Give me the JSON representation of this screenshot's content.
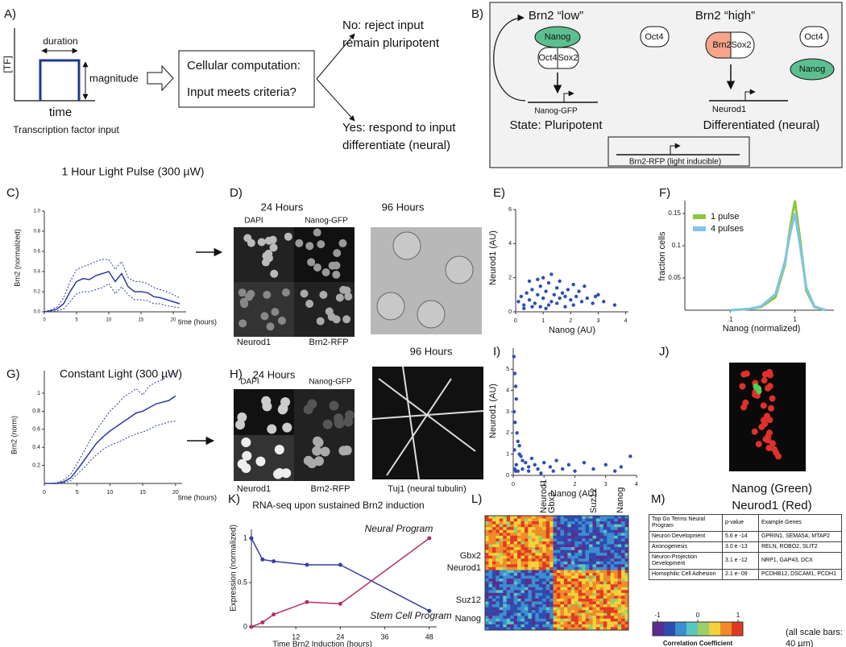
{
  "panel_labels": [
    "A)",
    "B)",
    "C)",
    "D)",
    "E)",
    "F)",
    "G)",
    "H)",
    "I)",
    "J)",
    "K)",
    "L)",
    "M)"
  ],
  "panel_a": {
    "y_label": "[TF]",
    "duration": "duration",
    "magnitude": "magnitude",
    "x_label": "time",
    "caption": "Transcription factor input",
    "box_line1": "Cellular computation:",
    "box_line2": "Input meets criteria?",
    "no_line1": "No: reject input",
    "no_line2": "remain pluripotent",
    "yes_line1": "Yes: respond to input",
    "yes_line2": "differentiate (neural)"
  },
  "panel_b": {
    "low": "Brn2 “low”",
    "high": "Brn2 “high”",
    "nanog": "Nanog",
    "oct4": "Oct4",
    "sox2": "Sox2",
    "gene_left": "Nanog-GFP",
    "state_left": "State: Pluripotent",
    "oct4_free": "Oct4",
    "brn2": "Brn2",
    "sox2_right": "Sox2",
    "oct4_right": "Oct4",
    "nanog_right": "Nanog",
    "gene_right": "Neurod1",
    "state_right": "Differentiated (neural)",
    "reporter": "Brn2-RFP (light inducible)"
  },
  "panel_d": {
    "t24": "24 Hours",
    "t96": "96 Hours",
    "dapi": "DAPI",
    "nanog_gfp": "Nanog-GFP",
    "neurod1": "Neurod1",
    "brn2_rfp": "Brn2-RFP"
  },
  "panel_h": {
    "t24": "24 Hours",
    "t96": "96 Hours",
    "dapi": "DAPI",
    "nanog_gfp": "Nanog-GFP",
    "neurod1": "Neurod1",
    "brn2_rfp": "Brn2-RFP",
    "tuj1": "Tuj1 (neural tubulin)"
  },
  "panel_j": {
    "line1": "Nanog (Green)",
    "line2": "Neurod1 (Red)"
  },
  "panel_l": {
    "top_labels": [
      "Neurod1",
      "Gbx2",
      "Suz12",
      "Nanog"
    ],
    "side_labels": [
      "Gbx2",
      "Neurod1",
      "Suz12",
      "Nanog"
    ],
    "colorbar_ticks": [
      -1,
      0,
      1
    ],
    "colorbar_label": "Correlation Coefficient"
  },
  "panel_m": {
    "header": [
      "Top Go Terms Neural Program",
      "p-value",
      "Example Genes"
    ],
    "rows": [
      [
        "Neuron Development",
        "5.6 e -14",
        "GPRIN1, SEMA5A, MTAP2"
      ],
      [
        "Axonogenesis",
        "3.0 e -13",
        "RELN, ROBO2, SLIT2"
      ],
      [
        "Neuron Projection Development",
        "3.1 e -12",
        "NRP1, GAP43, DCX"
      ],
      [
        "Homophilic Cell Adhesion",
        "2.1 e- 09",
        "PCDHB12, DSCAM1, PCDH1"
      ]
    ]
  },
  "scale_note": [
    "(all scale bars:",
    "40 µm)"
  ],
  "chart_data": [
    {
      "type": "line",
      "title": "1 Hour Light Pulse (300 µW)",
      "y_label": "Brn2 (normalized)",
      "x_label": "time (hours)",
      "x": [
        0,
        1,
        2,
        3,
        4,
        5,
        6,
        7,
        8,
        9,
        10,
        11,
        12,
        13,
        14,
        15,
        16,
        17,
        18,
        19,
        20,
        21
      ],
      "series": [
        {
          "color": "#2b3a9e",
          "dash": "solid",
          "values": [
            0,
            0.01,
            0.03,
            0.08,
            0.2,
            0.3,
            0.33,
            0.32,
            0.36,
            0.38,
            0.4,
            0.3,
            0.38,
            0.25,
            0.2,
            0.2,
            0.19,
            0.15,
            0.14,
            0.12,
            0.1,
            0.08
          ]
        },
        {
          "color": "#2b3a9e",
          "dash": "dotted",
          "values": [
            0,
            0.02,
            0.05,
            0.14,
            0.3,
            0.42,
            0.45,
            0.47,
            0.5,
            0.52,
            0.52,
            0.42,
            0.5,
            0.34,
            0.3,
            0.3,
            0.28,
            0.24,
            0.22,
            0.2,
            0.17,
            0.14
          ]
        },
        {
          "color": "#2b3a9e",
          "dash": "dotted",
          "values": [
            0,
            0,
            0.01,
            0.03,
            0.1,
            0.18,
            0.2,
            0.2,
            0.22,
            0.24,
            0.28,
            0.18,
            0.25,
            0.17,
            0.12,
            0.12,
            0.11,
            0.08,
            0.08,
            0.06,
            0.05,
            0.04
          ]
        }
      ],
      "xlim": [
        0,
        22
      ],
      "ylim": [
        0,
        1
      ],
      "xticks": [
        0,
        5,
        10,
        15,
        20
      ],
      "yticks": [
        {
          "value": 0,
          "label": "0.0"
        },
        0.2,
        0.4,
        0.6,
        0.8,
        {
          "value": 1,
          "label": "1.0"
        }
      ]
    },
    {
      "type": "line",
      "title": "Constant Light (300 µW)",
      "y_label": "Brn2 (norm)",
      "x_label": "time (hours)",
      "x": [
        0,
        1,
        2,
        3,
        4,
        5,
        6,
        7,
        8,
        9,
        10,
        11,
        12,
        13,
        14,
        15,
        16,
        17,
        18,
        19,
        20
      ],
      "series": [
        {
          "color": "#2b3a9e",
          "dash": "solid",
          "values": [
            0,
            0,
            0,
            0.02,
            0.06,
            0.15,
            0.25,
            0.35,
            0.45,
            0.52,
            0.58,
            0.63,
            0.68,
            0.73,
            0.78,
            0.8,
            0.84,
            0.88,
            0.9,
            0.92,
            0.97
          ]
        },
        {
          "color": "#2b3a9e",
          "dash": "dotted",
          "values": [
            0,
            0,
            0.01,
            0.04,
            0.1,
            0.22,
            0.35,
            0.48,
            0.6,
            0.7,
            0.8,
            0.87,
            0.95,
            1.0,
            1.05,
            0.98,
            1.08,
            1.12,
            1.15,
            1.2,
            1.22
          ]
        },
        {
          "color": "#2b3a9e",
          "dash": "dotted",
          "values": [
            0,
            0,
            0,
            0.01,
            0.03,
            0.1,
            0.17,
            0.25,
            0.32,
            0.38,
            0.42,
            0.45,
            0.48,
            0.52,
            0.55,
            0.57,
            0.6,
            0.64,
            0.66,
            0.68,
            0.69
          ]
        }
      ],
      "xlim": [
        0,
        21
      ],
      "ylim": [
        0,
        1.25
      ],
      "xticks": [
        0,
        5,
        10,
        15,
        20
      ],
      "yticks": [
        0.2,
        0.4,
        0.6,
        0.8,
        1
      ]
    },
    {
      "type": "scatter",
      "x_label": "Nanog (AU)",
      "y_label": "Neurod1 (AU)",
      "color": "#2f4fb5",
      "x": [
        0.1,
        0.2,
        0.3,
        0.4,
        0.5,
        0.6,
        0.7,
        0.8,
        0.9,
        1.0,
        1.1,
        1.2,
        1.3,
        1.4,
        1.5,
        1.6,
        1.7,
        1.8,
        1.9,
        2.0,
        2.1,
        2.2,
        2.3,
        2.4,
        2.6,
        2.8,
        3.0,
        3.2,
        3.6,
        0.3,
        0.6,
        0.9,
        1.2,
        1.5,
        1.8,
        2.1,
        1.0,
        1.3,
        0.8,
        1.6,
        2.5,
        2.9,
        1.1,
        0.5
      ],
      "values": [
        0.6,
        0.9,
        0.4,
        1.1,
        0.7,
        1.3,
        0.5,
        1.0,
        1.5,
        0.8,
        1.2,
        1.7,
        0.6,
        1.0,
        1.4,
        0.8,
        1.1,
        0.9,
        1.3,
        0.7,
        1.6,
        0.9,
        1.2,
        0.6,
        0.8,
        0.5,
        1.0,
        0.6,
        0.4,
        0.2,
        0.3,
        0.3,
        0.4,
        0.5,
        0.3,
        0.4,
        2.0,
        2.2,
        1.9,
        1.8,
        1.5,
        0.9,
        0.2,
        1.8
      ],
      "xlim": [
        0,
        4.1
      ],
      "ylim": [
        0,
        6
      ],
      "xticks": [
        0,
        1,
        2,
        3,
        4
      ],
      "yticks": [
        0,
        2,
        4,
        6
      ]
    },
    {
      "type": "scatter",
      "x_label": "Nanog (AU)",
      "y_label": "Neurod1 (AU)",
      "color": "#2f4fb5",
      "x": [
        0.02,
        0.05,
        0.08,
        0.1,
        0.03,
        0.06,
        0.12,
        0.15,
        0.04,
        0.2,
        0.25,
        0.3,
        0.1,
        0.4,
        0.5,
        0.6,
        0.7,
        0.8,
        1.0,
        1.2,
        1.4,
        1.6,
        1.8,
        2.0,
        2.3,
        2.6,
        3.0,
        3.3,
        3.5,
        3.8,
        0.05,
        0.15,
        0.3,
        0.5,
        0.9,
        1.3,
        0.08,
        0.2
      ],
      "values": [
        5.6,
        4.8,
        4.2,
        3.6,
        3.0,
        2.5,
        2.0,
        1.6,
        1.2,
        1.0,
        0.9,
        0.7,
        0.5,
        0.6,
        0.4,
        0.8,
        0.5,
        0.3,
        0.6,
        0.4,
        0.7,
        0.3,
        0.5,
        0.2,
        0.6,
        0.3,
        0.5,
        0.2,
        0.4,
        0.9,
        0.3,
        0.2,
        0.3,
        0.2,
        0.1,
        0.2,
        0.2,
        1.4
      ],
      "xlim": [
        0,
        4
      ],
      "ylim": [
        0,
        6
      ],
      "xticks": [
        0,
        1,
        2,
        3,
        4
      ],
      "yticks": [
        0,
        1,
        2,
        3,
        4,
        5
      ]
    },
    {
      "type": "line",
      "x_label": "Nanog (normalized)",
      "y_label": "fraction cells",
      "xscale": "log",
      "legend": "upper left",
      "x": [
        0.1,
        0.2,
        0.3,
        0.5,
        0.7,
        0.85,
        1,
        1.2,
        1.5,
        2,
        3
      ],
      "series": [
        {
          "name": "1 pulse",
          "color": "#8dc63f",
          "dash": "solid",
          "values": [
            0,
            0.002,
            0.005,
            0.02,
            0.07,
            0.13,
            0.17,
            0.11,
            0.03,
            0.005,
            0
          ]
        },
        {
          "name": "4 pulses",
          "color": "#7fc4e8",
          "dash": "solid",
          "values": [
            0,
            0.002,
            0.006,
            0.025,
            0.075,
            0.12,
            0.15,
            0.1,
            0.035,
            0.006,
            0
          ]
        }
      ],
      "xlim": [
        0.02,
        4
      ],
      "ylim": [
        0,
        0.17
      ],
      "xticks": [
        {
          "value": 0.1,
          "label": ".1"
        },
        1
      ],
      "yticks": [
        0.05,
        0.1,
        0.15
      ]
    },
    {
      "type": "line",
      "title": "RNA-seq upon sustained Brn2 induction",
      "y_label": "Expression (normalized)",
      "x_label": "Time Brn2 Induction (hours)",
      "markers": true,
      "x": [
        0,
        3,
        6,
        15,
        24,
        48
      ],
      "series": [
        {
          "name": "Stem Cell Program",
          "color": "#3a3f9f",
          "dash": "solid",
          "values": [
            1,
            0.76,
            0.74,
            0.7,
            0.7,
            0.18
          ]
        },
        {
          "name": "Neural Program",
          "color": "#b0306a",
          "dash": "solid",
          "values": [
            0,
            0.05,
            0.14,
            0.28,
            0.26,
            1
          ]
        }
      ],
      "xlim": [
        0,
        50
      ],
      "ylim": [
        0,
        1.1
      ],
      "xticks": [
        12,
        24,
        36,
        48
      ],
      "yticks": [
        0,
        0.5,
        1
      ]
    }
  ]
}
